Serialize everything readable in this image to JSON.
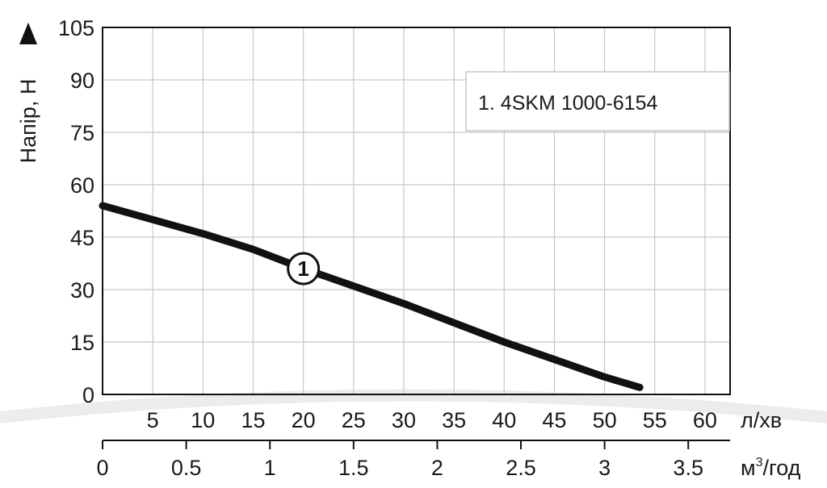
{
  "chart_data": {
    "type": "line",
    "ylabel": "Напір, Н",
    "x_unit_primary": "л/хв",
    "x_unit_secondary_base": "м",
    "x_unit_secondary_sup": "3",
    "x_unit_secondary_rest": "/год",
    "xlim": [
      0,
      62.5
    ],
    "ylim": [
      0,
      105
    ],
    "x_ticks": [
      5,
      10,
      15,
      20,
      25,
      30,
      35,
      40,
      45,
      50,
      55,
      60
    ],
    "x_tick_labels": [
      "5",
      "10",
      "15",
      "20",
      "25",
      "30",
      "35",
      "40",
      "45",
      "50",
      "55",
      "60"
    ],
    "x2_ticks": [
      0,
      0.5,
      1,
      1.5,
      2,
      2.5,
      3,
      3.5
    ],
    "x2_tick_labels": [
      "0",
      "0.5",
      "1",
      "1.5",
      "2",
      "2.5",
      "3",
      "3.5"
    ],
    "y_ticks": [
      0,
      15,
      30,
      45,
      60,
      75,
      90,
      105
    ],
    "y_tick_labels": [
      "0",
      "15",
      "30",
      "45",
      "60",
      "75",
      "90",
      "105"
    ],
    "grid": true,
    "legend_position": "top-right",
    "legend": [
      "1. 4SKM 1000-6154"
    ],
    "series": [
      {
        "label": "1",
        "x": [
          0,
          5,
          10,
          15,
          20,
          25,
          30,
          35,
          40,
          45,
          50,
          53.5
        ],
        "y": [
          54,
          50,
          46,
          41.5,
          36,
          31,
          26,
          20.5,
          15,
          10,
          5,
          2
        ]
      }
    ],
    "marker_label_x": 20,
    "colors": {
      "line": "#111111",
      "grid": "#c8c8c8",
      "frame": "#111111",
      "swoosh": "#ececec"
    }
  }
}
